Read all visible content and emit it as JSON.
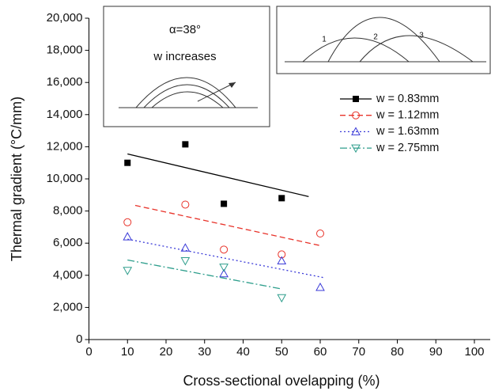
{
  "chart_data": {
    "type": "scatter",
    "x_label": "Cross-sectional ovelapping (%)",
    "y_label": "Thermal gradient (°C/mm)",
    "xlim": [
      0,
      100
    ],
    "xticks": [
      0,
      10,
      20,
      30,
      40,
      50,
      60,
      70,
      80,
      90,
      100
    ],
    "ylim": [
      0,
      20000
    ],
    "yticks": [
      {
        "value": 0,
        "label": "0"
      },
      {
        "value": 2000,
        "label": "2,000"
      },
      {
        "value": 4000,
        "label": "4,000"
      },
      {
        "value": 6000,
        "label": "6,000"
      },
      {
        "value": 8000,
        "label": "8,000"
      },
      {
        "value": 10000,
        "label": "10,000"
      },
      {
        "value": 12000,
        "label": "12,000"
      },
      {
        "value": 14000,
        "label": "14,000"
      },
      {
        "value": 16000,
        "label": "16,000"
      },
      {
        "value": 18000,
        "label": "18,000"
      },
      {
        "value": 20000,
        "label": "20,000"
      }
    ],
    "series": [
      {
        "name": "w = 0.83mm",
        "color": "#000000",
        "marker": "square",
        "dash": "",
        "x": [
          10,
          25,
          35,
          50
        ],
        "values": [
          11000,
          12150,
          8450,
          8800
        ],
        "fit": {
          "x": [
            10,
            57
          ],
          "y": [
            11550,
            8900
          ]
        }
      },
      {
        "name": "w = 1.12mm",
        "color": "#e8332a",
        "marker": "circle",
        "dash": "7 4",
        "x": [
          10,
          25,
          35,
          50,
          60
        ],
        "values": [
          7300,
          8400,
          5600,
          5300,
          6600
        ],
        "fit": {
          "x": [
            12,
            60
          ],
          "y": [
            8350,
            5850
          ]
        }
      },
      {
        "name": "w = 1.63mm",
        "color": "#3a3ad8",
        "marker": "triangle-up",
        "dash": "2 3",
        "x": [
          10,
          25,
          35,
          50,
          60
        ],
        "values": [
          6400,
          5700,
          4100,
          4900,
          3250
        ],
        "fit": {
          "x": [
            10,
            61
          ],
          "y": [
            6250,
            3850
          ]
        }
      },
      {
        "name": "w = 2.75mm",
        "color": "#2e9e8c",
        "marker": "triangle-down",
        "dash": "9 3 2 3",
        "x": [
          10,
          25,
          35,
          50
        ],
        "values": [
          4300,
          4900,
          4500,
          2600
        ],
        "fit": {
          "x": [
            10,
            50
          ],
          "y": [
            4950,
            3150
          ]
        }
      }
    ],
    "annotations": {
      "angle": "α=38°",
      "direction": "w increases",
      "label_1": "1",
      "label_2": "2",
      "label_3": "3"
    }
  }
}
